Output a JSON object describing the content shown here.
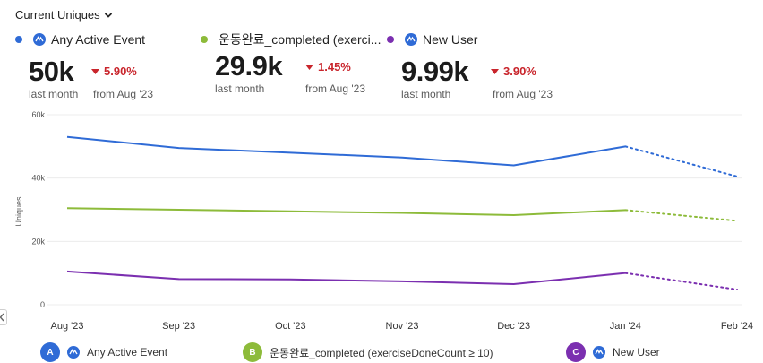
{
  "header": {
    "metric_label": "Current Uniques"
  },
  "kpis": [
    {
      "name": "Any Active Event",
      "color": "#2f6bd6",
      "value": "50k",
      "period": "last month",
      "change": "5.90%",
      "compare": "from Aug '23"
    },
    {
      "name": "운동완료_completed (exerci...",
      "color": "#8dbb3a",
      "value": "29.9k",
      "period": "last month",
      "change": "1.45%",
      "compare": "from Aug '23"
    },
    {
      "name": "New User",
      "color": "#7b2fb0",
      "value": "9.99k",
      "period": "last month",
      "change": "3.90%",
      "compare": "from Aug '23"
    }
  ],
  "legend": [
    {
      "badge": "A",
      "label": "Any Active Event",
      "color": "#2f6bd6"
    },
    {
      "badge": "B",
      "label": "운동완료_completed (exerciseDoneCount ≥ 10)",
      "color": "#8dbb3a"
    },
    {
      "badge": "C",
      "label": "New User",
      "color": "#7b2fb0"
    }
  ],
  "chart_data": {
    "type": "line",
    "categories": [
      "Aug '23",
      "Sep '23",
      "Oct '23",
      "Nov '23",
      "Dec '23",
      "Jan '24",
      "Feb '24"
    ],
    "ylabel": "Uniques",
    "ylim": [
      0,
      60000
    ],
    "yticks": [
      0,
      20000,
      40000,
      60000
    ],
    "ytick_labels": [
      "0",
      "20k",
      "40k",
      "60k"
    ],
    "incomplete_from_index": 5,
    "series": [
      {
        "name": "Any Active Event",
        "color": "#2f6bd6",
        "values": [
          53000,
          49500,
          48000,
          46500,
          44000,
          50000,
          40500
        ]
      },
      {
        "name": "운동완료_completed (exerciseDoneCount ≥ 10)",
        "color": "#8dbb3a",
        "values": [
          30500,
          30000,
          29500,
          29000,
          28300,
          29900,
          26500
        ]
      },
      {
        "name": "New User",
        "color": "#7b2fb0",
        "values": [
          10500,
          8100,
          8000,
          7400,
          6500,
          10000,
          4800
        ]
      }
    ]
  }
}
